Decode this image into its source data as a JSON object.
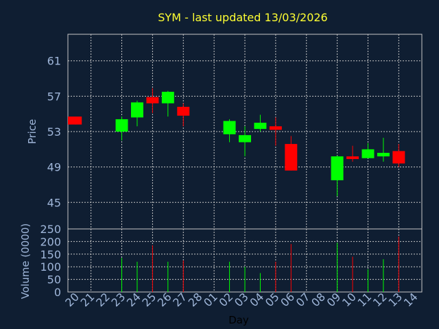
{
  "chart_data": [
    {
      "type": "candlestick",
      "title": "SYM - last updated 13/03/2026",
      "ylabel": "Price",
      "ylim": [
        42,
        64
      ],
      "yticks": [
        45,
        49,
        53,
        57,
        61
      ],
      "ytick_labels": [
        "45",
        "49",
        "53",
        "57",
        "61"
      ],
      "categories": [
        "20",
        "21",
        "22",
        "23",
        "24",
        "25",
        "26",
        "27",
        "28",
        "01",
        "02",
        "03",
        "04",
        "05",
        "06",
        "07",
        "08",
        "09",
        "10",
        "11",
        "12",
        "13",
        "14"
      ],
      "candles": [
        {
          "day": "20",
          "open": 54.7,
          "close": 53.8,
          "high": 54.7,
          "low": 53.8
        },
        {
          "day": "23",
          "open": 53.0,
          "close": 54.4,
          "high": 54.7,
          "low": 52.0
        },
        {
          "day": "24",
          "open": 54.6,
          "close": 56.3,
          "high": 56.5,
          "low": 53.6
        },
        {
          "day": "25",
          "open": 56.9,
          "close": 56.2,
          "high": 57.9,
          "low": 55.1
        },
        {
          "day": "26",
          "open": 56.2,
          "close": 57.5,
          "high": 57.6,
          "low": 54.7
        },
        {
          "day": "27",
          "open": 55.8,
          "close": 54.8,
          "high": 56.2,
          "low": 53.6
        },
        {
          "day": "02",
          "open": 52.7,
          "close": 54.2,
          "high": 54.4,
          "low": 51.8
        },
        {
          "day": "03",
          "open": 51.8,
          "close": 52.6,
          "high": 53.6,
          "low": 50.2
        },
        {
          "day": "04",
          "open": 53.3,
          "close": 54.0,
          "high": 54.9,
          "low": 53.0
        },
        {
          "day": "05",
          "open": 53.6,
          "close": 53.2,
          "high": 54.6,
          "low": 51.4
        },
        {
          "day": "06",
          "open": 51.6,
          "close": 48.6,
          "high": 52.5,
          "low": 48.6
        },
        {
          "day": "09",
          "open": 47.5,
          "close": 50.2,
          "high": 50.3,
          "low": 45.7
        },
        {
          "day": "10",
          "open": 50.2,
          "close": 49.9,
          "high": 51.4,
          "low": 49.6
        },
        {
          "day": "11",
          "open": 50.0,
          "close": 51.0,
          "high": 51.7,
          "low": 50.0
        },
        {
          "day": "12",
          "open": 50.2,
          "close": 50.6,
          "high": 52.3,
          "low": 49.6
        },
        {
          "day": "13",
          "open": 50.8,
          "close": 49.4,
          "high": 51.6,
          "low": 49.0
        }
      ],
      "colors": {
        "up": "#00ff00",
        "down": "#ff0000",
        "grid": "#c8c8c8",
        "text": "#9fb6d9",
        "title": "#ffff33",
        "background": "#0f1e32"
      },
      "grid": true
    },
    {
      "type": "bar",
      "ylabel": "Volume (0000)",
      "ylim": [
        0,
        250
      ],
      "yticks": [
        0,
        50,
        100,
        150,
        200,
        250
      ],
      "ytick_labels": [
        "0",
        "50",
        "100",
        "150",
        "200",
        "250"
      ],
      "xlabel": "Day",
      "volumes": [
        {
          "day": "20",
          "value": 0,
          "direction": "down"
        },
        {
          "day": "23",
          "value": 135,
          "direction": "up"
        },
        {
          "day": "24",
          "value": 120,
          "direction": "up"
        },
        {
          "day": "25",
          "value": 185,
          "direction": "down"
        },
        {
          "day": "26",
          "value": 120,
          "direction": "up"
        },
        {
          "day": "27",
          "value": 125,
          "direction": "down"
        },
        {
          "day": "02",
          "value": 120,
          "direction": "up"
        },
        {
          "day": "03",
          "value": 100,
          "direction": "up"
        },
        {
          "day": "04",
          "value": 75,
          "direction": "up"
        },
        {
          "day": "05",
          "value": 120,
          "direction": "down"
        },
        {
          "day": "06",
          "value": 190,
          "direction": "down"
        },
        {
          "day": "09",
          "value": 195,
          "direction": "up"
        },
        {
          "day": "10",
          "value": 140,
          "direction": "down"
        },
        {
          "day": "11",
          "value": 90,
          "direction": "up"
        },
        {
          "day": "12",
          "value": 130,
          "direction": "up"
        },
        {
          "day": "13",
          "value": 220,
          "direction": "down"
        }
      ],
      "grid": true
    }
  ]
}
